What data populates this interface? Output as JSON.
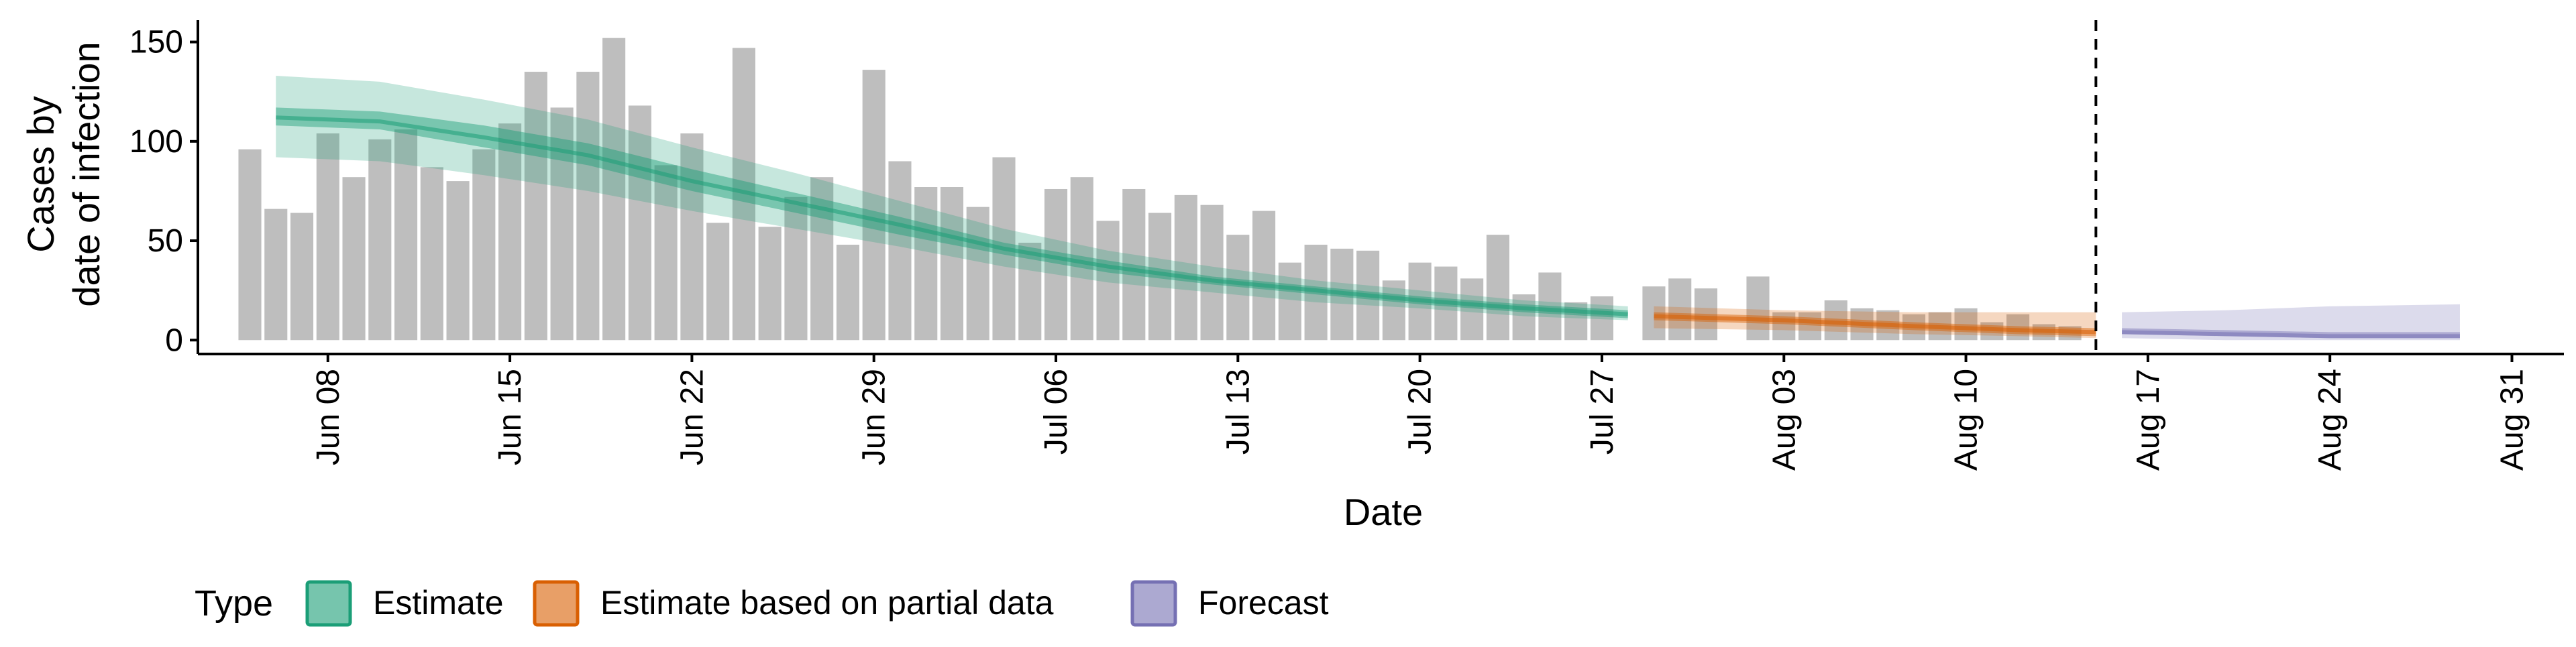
{
  "chart_data": {
    "type": "bar",
    "xlabel": "Date",
    "ylabel_lines": [
      "Cases by",
      "date of infection"
    ],
    "ylim": [
      -7,
      161
    ],
    "x_range": [
      "2020-06-03",
      "2020-09-02"
    ],
    "y_ticks": [
      0,
      50,
      100,
      150
    ],
    "x_ticks": [
      {
        "date": "2020-06-08",
        "label": "Jun 08"
      },
      {
        "date": "2020-06-15",
        "label": "Jun 15"
      },
      {
        "date": "2020-06-22",
        "label": "Jun 22"
      },
      {
        "date": "2020-06-29",
        "label": "Jun 29"
      },
      {
        "date": "2020-07-06",
        "label": "Jul 06"
      },
      {
        "date": "2020-07-13",
        "label": "Jul 13"
      },
      {
        "date": "2020-07-20",
        "label": "Jul 20"
      },
      {
        "date": "2020-07-27",
        "label": "Jul 27"
      },
      {
        "date": "2020-08-03",
        "label": "Aug 03"
      },
      {
        "date": "2020-08-10",
        "label": "Aug 10"
      },
      {
        "date": "2020-08-17",
        "label": "Aug 17"
      },
      {
        "date": "2020-08-24",
        "label": "Aug 24"
      },
      {
        "date": "2020-08-31",
        "label": "Aug 31"
      }
    ],
    "vline_date": "2020-08-15",
    "bar_color": "#bebebe",
    "bars": {
      "start_date": "2020-06-05",
      "values": [
        96,
        66,
        64,
        104,
        82,
        101,
        106,
        87,
        80,
        96,
        109,
        135,
        117,
        135,
        152,
        118,
        88,
        104,
        59,
        147,
        57,
        72,
        82,
        48,
        136,
        90,
        77,
        77,
        67,
        92,
        49,
        76,
        82,
        60,
        76,
        64,
        73,
        68,
        53,
        65,
        39,
        48,
        46,
        45,
        30,
        39,
        37,
        31,
        53,
        23,
        34,
        19,
        22,
        0,
        27,
        31,
        26,
        0,
        32,
        14,
        14,
        20,
        16,
        15,
        13,
        14,
        16,
        9,
        13,
        8,
        7
      ]
    },
    "series": [
      {
        "name": "Estimate",
        "color": "#1b9e77",
        "dates": [
          "2020-06-06",
          "2020-06-10",
          "2020-06-14",
          "2020-06-18",
          "2020-06-22",
          "2020-06-26",
          "2020-06-30",
          "2020-07-04",
          "2020-07-08",
          "2020-07-12",
          "2020-07-16",
          "2020-07-20",
          "2020-07-24",
          "2020-07-28"
        ],
        "median": [
          112,
          110,
          102,
          93,
          80,
          69,
          58,
          46,
          37,
          30,
          25,
          20,
          16,
          13
        ],
        "lower_50": [
          108,
          106,
          97,
          88,
          75,
          64,
          53,
          43,
          34,
          28,
          23,
          18,
          14,
          11
        ],
        "upper_50": [
          117,
          115,
          108,
          99,
          86,
          74,
          62,
          49,
          40,
          32,
          27,
          22,
          18,
          15
        ],
        "lower_90": [
          92,
          90,
          83,
          75,
          65,
          56,
          47,
          37,
          29,
          24,
          19,
          16,
          12,
          10
        ],
        "upper_90": [
          133,
          130,
          121,
          111,
          97,
          84,
          70,
          56,
          45,
          37,
          30,
          25,
          20,
          17
        ]
      },
      {
        "name": "Estimate based on partial data",
        "color": "#d95f02",
        "dates": [
          "2020-07-29",
          "2020-08-03",
          "2020-08-08",
          "2020-08-12",
          "2020-08-15"
        ],
        "median": [
          12,
          10,
          7,
          5,
          4
        ],
        "lower_50": [
          10,
          8,
          5,
          3,
          2
        ],
        "upper_50": [
          14,
          12,
          9,
          7,
          6
        ],
        "lower_90": [
          6,
          5,
          3,
          2,
          1
        ],
        "upper_90": [
          17,
          15,
          14,
          14,
          14
        ]
      },
      {
        "name": "Forecast",
        "color": "#7570b3",
        "dates": [
          "2020-08-16",
          "2020-08-20",
          "2020-08-24",
          "2020-08-29"
        ],
        "median": [
          4,
          3,
          2,
          2
        ],
        "lower_50": [
          3,
          2,
          1,
          1
        ],
        "upper_50": [
          6,
          5,
          4,
          4
        ],
        "lower_90": [
          1,
          0,
          0,
          0
        ],
        "upper_90": [
          14,
          15,
          17,
          18
        ]
      }
    ],
    "legend": {
      "title": "Type",
      "placement": "bottom",
      "items": [
        "Estimate",
        "Estimate based on partial data",
        "Forecast"
      ]
    }
  }
}
